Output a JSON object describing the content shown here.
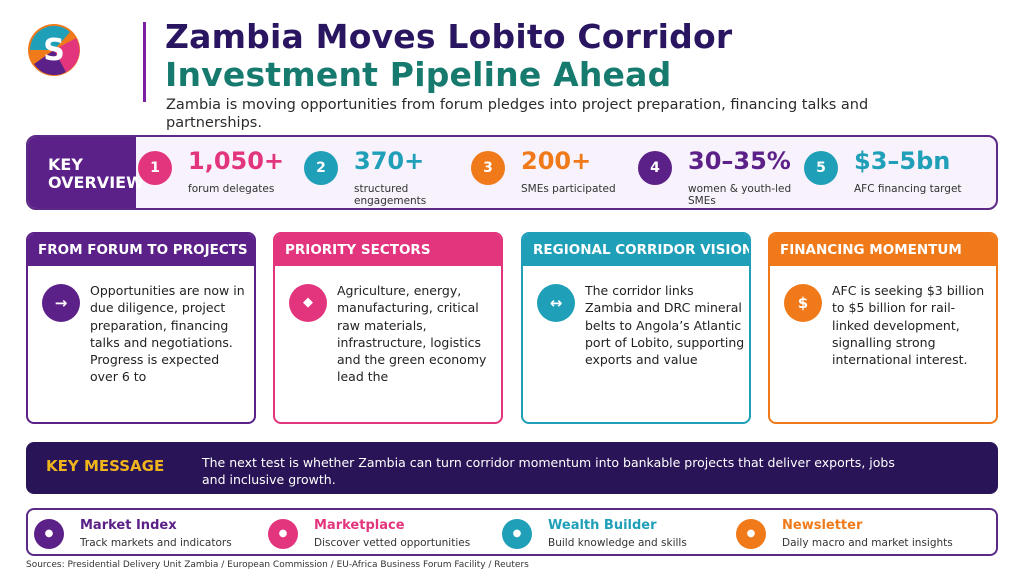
{
  "header": {
    "title_line1": "Zambia Moves Lobito Corridor",
    "title_line2": "Investment Pipeline Ahead",
    "subtitle": "Zambia is moving opportunities from forum pledges into project preparation, financing talks and partnerships."
  },
  "overview": {
    "label": "KEY OVERVIEW",
    "stats": [
      {
        "num": "1",
        "value": "1,050+",
        "label": "forum delegates",
        "color": "#e2357e"
      },
      {
        "num": "2",
        "value": "370+",
        "label": "structured engagements",
        "color": "#1f9fb8"
      },
      {
        "num": "3",
        "value": "200+",
        "label": "SMEs participated",
        "color": "#f07a1a"
      },
      {
        "num": "4",
        "value": "30–35%",
        "label": "women & youth-led SMEs",
        "color": "#5b2189"
      },
      {
        "num": "5",
        "value": "$3–5bn",
        "label": "AFC financing target",
        "color": "#1f9fb8"
      }
    ]
  },
  "cards": [
    {
      "title": "FROM FORUM TO PROJECTS",
      "icon": "→",
      "icon_name": "arrow-right-icon",
      "color": "#5b2189",
      "body": "Opportunities are now in due diligence, project preparation, financing talks and negotiations. Progress is expected over 6 to"
    },
    {
      "title": "PRIORITY SECTORS",
      "icon": "◆",
      "icon_name": "diamond-icon",
      "color": "#e2357e",
      "body": "Agriculture, energy, manufacturing, critical raw materials, infrastructure, logistics and the green economy lead the"
    },
    {
      "title": "REGIONAL CORRIDOR VISION",
      "icon": "↔",
      "icon_name": "two-way-arrow-icon",
      "color": "#1f9fb8",
      "body": "The corridor links Zambia and DRC mineral belts to Angola’s Atlantic port of Lobito, supporting exports and value"
    },
    {
      "title": "FINANCING MOMENTUM",
      "icon": "$",
      "icon_name": "dollar-icon",
      "color": "#f07a1a",
      "body": "AFC is seeking $3 billion to $5 billion for rail-linked development, signalling strong international interest."
    }
  ],
  "key_message": {
    "label": "KEY MESSAGE",
    "text": "The next test is whether Zambia can turn corridor momentum into bankable projects that deliver exports, jobs and inclusive growth."
  },
  "bottom_nav": [
    {
      "title": "Market Index",
      "sub": "Track markets and indicators",
      "color": "#5b2189"
    },
    {
      "title": "Marketplace",
      "sub": "Discover vetted opportunities",
      "color": "#e2357e"
    },
    {
      "title": "Wealth Builder",
      "sub": "Build knowledge and skills",
      "color": "#1f9fb8"
    },
    {
      "title": "Newsletter",
      "sub": "Daily macro and market insights",
      "color": "#f07a1a"
    }
  ],
  "sources": "Sources: Presidential Delivery Unit Zambia / European Commission / EU-Africa Business Forum Facility / Reuters"
}
